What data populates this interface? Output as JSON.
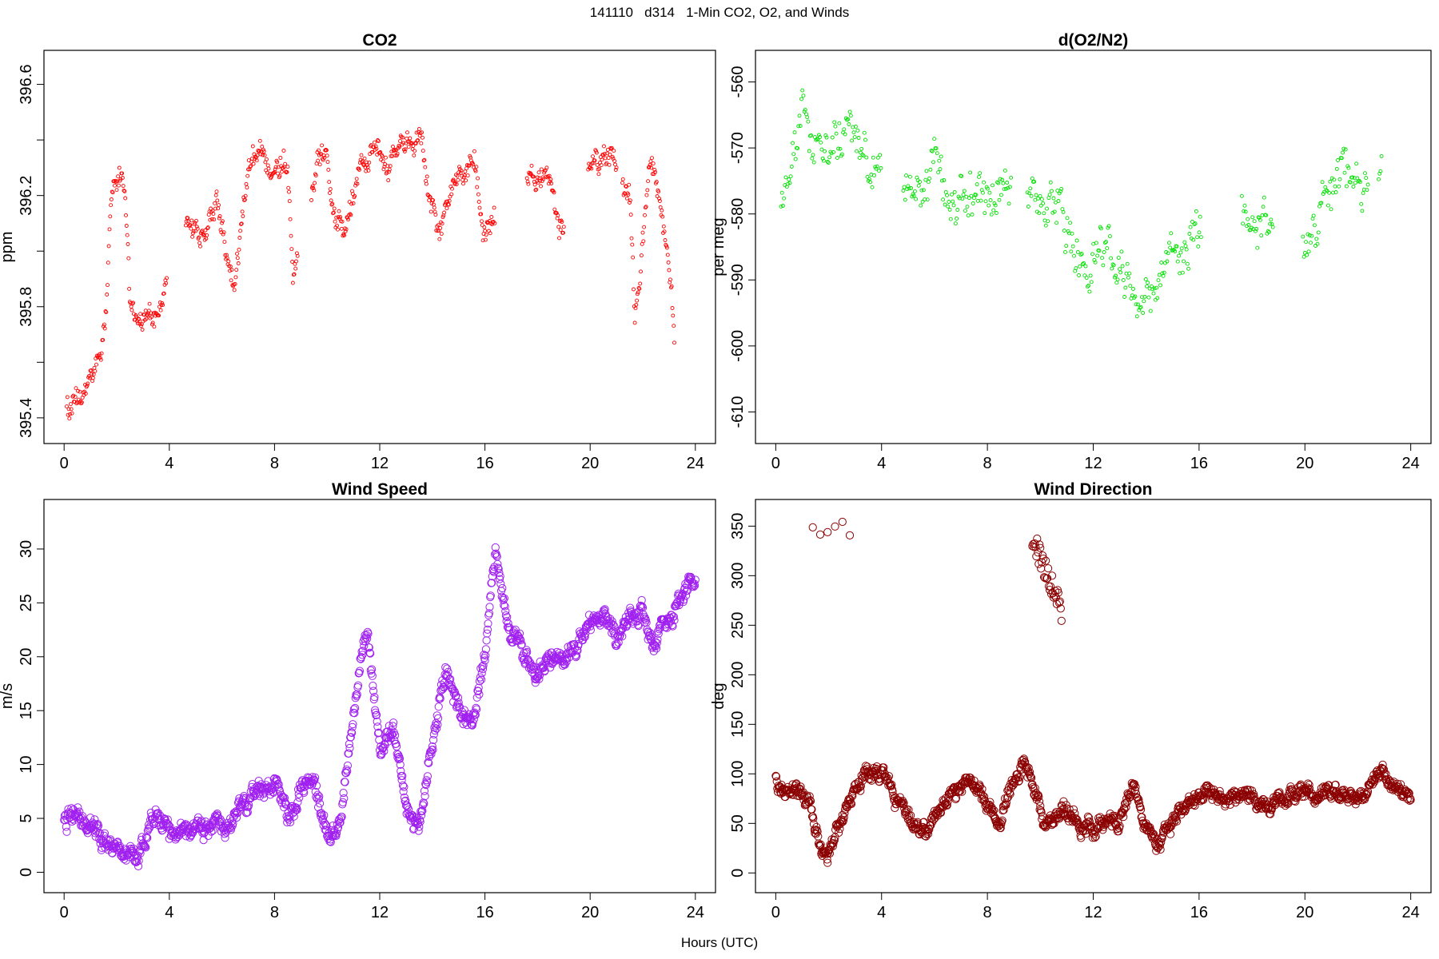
{
  "page": {
    "title": "141110   d314   1-Min CO2, O2, and Winds",
    "xlabel": "Hours (UTC)"
  },
  "chart_data": [
    {
      "type": "scatter",
      "title": "CO2",
      "xlabel": "",
      "ylabel": "ppm",
      "xlim": [
        0,
        24
      ],
      "ylim": [
        395.35,
        396.68
      ],
      "x_ticks": [
        0,
        4,
        8,
        12,
        16,
        20,
        24
      ],
      "y_ticks": [
        395.4,
        395.6,
        395.8,
        396.0,
        396.2,
        396.4,
        396.6
      ],
      "y_tick_labels": [
        "395.4",
        "",
        "395.8",
        "",
        "396.2",
        "",
        "396.6"
      ],
      "color": "#ff0000",
      "marker": "small-open-circle",
      "anchors": [
        [
          0.1,
          395.45
        ],
        [
          0.5,
          395.44
        ],
        [
          0.8,
          395.48
        ],
        [
          1.0,
          395.55
        ],
        [
          1.4,
          395.62
        ],
        [
          1.6,
          395.8
        ],
        [
          1.8,
          396.2
        ],
        [
          2.2,
          396.3
        ],
        [
          2.4,
          396.1
        ],
        [
          2.5,
          395.82
        ],
        [
          3.0,
          395.75
        ],
        [
          3.5,
          395.75
        ],
        [
          4.7,
          396.1
        ],
        [
          5.3,
          396.05
        ],
        [
          5.8,
          396.18
        ],
        [
          6.2,
          395.95
        ],
        [
          6.5,
          395.92
        ],
        [
          7.0,
          396.3
        ],
        [
          7.5,
          396.32
        ],
        [
          8.5,
          396.33
        ],
        [
          8.7,
          395.95
        ],
        [
          9.6,
          396.33
        ],
        [
          10.0,
          396.35
        ],
        [
          10.3,
          396.15
        ],
        [
          10.7,
          396.1
        ],
        [
          11.2,
          396.3
        ],
        [
          11.8,
          396.35
        ],
        [
          12.3,
          396.3
        ],
        [
          12.8,
          396.35
        ],
        [
          13.5,
          396.4
        ],
        [
          14.3,
          396.05
        ],
        [
          15.0,
          396.35
        ],
        [
          15.6,
          396.3
        ],
        [
          16.0,
          396.05
        ],
        [
          17.8,
          396.25
        ],
        [
          18.3,
          396.25
        ],
        [
          18.8,
          396.05
        ],
        [
          20.2,
          396.35
        ],
        [
          20.8,
          396.33
        ],
        [
          21.5,
          396.25
        ],
        [
          21.7,
          395.75
        ],
        [
          22.3,
          396.35
        ],
        [
          22.8,
          396.1
        ],
        [
          23.1,
          395.8
        ],
        [
          23.2,
          395.65
        ]
      ],
      "gaps": [
        [
          3.9,
          4.6
        ],
        [
          8.9,
          9.4
        ],
        [
          16.4,
          17.6
        ],
        [
          19.0,
          19.9
        ],
        [
          21.0,
          21.2
        ]
      ],
      "noise": 0.05,
      "step_minutes": 1.5
    },
    {
      "type": "scatter",
      "title": "d(O2/N2)",
      "xlabel": "",
      "ylabel": "per meg",
      "xlim": [
        0,
        24
      ],
      "ylim": [
        -613,
        -557
      ],
      "x_ticks": [
        0,
        4,
        8,
        12,
        16,
        20,
        24
      ],
      "y_ticks": [
        -560,
        -570,
        -580,
        -590,
        -600,
        -610
      ],
      "y_tick_labels": [
        "-560",
        "-570",
        "-580",
        "-590",
        "-600",
        "-610"
      ],
      "color": "#00e000",
      "marker": "small-open-circle",
      "anchors": [
        [
          0.2,
          -580
        ],
        [
          1.0,
          -568
        ],
        [
          2.0,
          -572
        ],
        [
          3.0,
          -570
        ],
        [
          3.8,
          -573
        ],
        [
          4.9,
          -575
        ],
        [
          6.0,
          -576
        ],
        [
          7.0,
          -578
        ],
        [
          8.0,
          -578
        ],
        [
          8.8,
          -576
        ],
        [
          9.7,
          -578
        ],
        [
          10.5,
          -577
        ],
        [
          11.0,
          -582
        ],
        [
          11.8,
          -590
        ],
        [
          12.5,
          -584
        ],
        [
          13.0,
          -590
        ],
        [
          13.8,
          -592
        ],
        [
          14.5,
          -590
        ],
        [
          15.2,
          -588
        ],
        [
          15.8,
          -582
        ],
        [
          17.8,
          -580
        ],
        [
          18.5,
          -580
        ],
        [
          20.0,
          -582
        ],
        [
          20.8,
          -578
        ],
        [
          21.5,
          -573
        ],
        [
          22.2,
          -576
        ],
        [
          22.9,
          -572
        ]
      ],
      "gaps": [
        [
          3.99,
          4.8
        ],
        [
          8.9,
          9.5
        ],
        [
          16.1,
          17.6
        ],
        [
          18.8,
          19.9
        ],
        [
          22.4,
          22.75
        ]
      ],
      "noise": 4.2,
      "step_minutes": 2.2
    },
    {
      "type": "scatter",
      "title": "Wind Speed",
      "xlabel": "",
      "ylabel": "m/s",
      "xlim": [
        0,
        24
      ],
      "ylim": [
        -0.8,
        33.5
      ],
      "x_ticks": [
        0,
        4,
        8,
        12,
        16,
        20,
        24
      ],
      "y_ticks": [
        0,
        5,
        10,
        15,
        20,
        25,
        30
      ],
      "y_tick_labels": [
        "0",
        "5",
        "10",
        "15",
        "20",
        "25",
        "30"
      ],
      "color": "#a020f0",
      "marker": "open-circle",
      "anchors": [
        [
          0,
          5
        ],
        [
          1.0,
          4.5
        ],
        [
          2.0,
          2.5
        ],
        [
          2.7,
          1.0
        ],
        [
          3.5,
          5.5
        ],
        [
          4.3,
          3.5
        ],
        [
          5.0,
          4.0
        ],
        [
          6.0,
          4.5
        ],
        [
          7.0,
          6.0
        ],
        [
          8.0,
          8.0
        ],
        [
          8.5,
          5.0
        ],
        [
          9.0,
          7.5
        ],
        [
          9.5,
          8.5
        ],
        [
          10.0,
          3.5
        ],
        [
          10.5,
          4.0
        ],
        [
          11.0,
          15.0
        ],
        [
          11.5,
          22.0
        ],
        [
          12.0,
          11.0
        ],
        [
          12.5,
          14.0
        ],
        [
          13.0,
          6.0
        ],
        [
          13.5,
          4.0
        ],
        [
          14.0,
          12.0
        ],
        [
          14.5,
          18.0
        ],
        [
          15.0,
          15.0
        ],
        [
          15.5,
          13.0
        ],
        [
          16.0,
          20.0
        ],
        [
          16.4,
          30.0
        ],
        [
          16.8,
          24.0
        ],
        [
          17.5,
          20.0
        ],
        [
          18.0,
          18.0
        ],
        [
          18.5,
          19.5
        ],
        [
          19.0,
          20.0
        ],
        [
          19.5,
          21.0
        ],
        [
          20.5,
          24.0
        ],
        [
          21.0,
          21.5
        ],
        [
          22.0,
          24.5
        ],
        [
          22.5,
          21.5
        ],
        [
          23.0,
          23.0
        ],
        [
          23.5,
          26.0
        ],
        [
          24.0,
          27.0
        ]
      ],
      "gaps": [],
      "noise": 1.0,
      "step_minutes": 1.2
    },
    {
      "type": "scatter",
      "title": "Wind Direction",
      "xlabel": "",
      "ylabel": "deg",
      "xlim": [
        0,
        24
      ],
      "ylim": [
        -8,
        365
      ],
      "x_ticks": [
        0,
        4,
        8,
        12,
        16,
        20,
        24
      ],
      "y_ticks": [
        0,
        50,
        100,
        150,
        200,
        250,
        300,
        350
      ],
      "y_tick_labels": [
        "0",
        "50",
        "100",
        "150",
        "200",
        "250",
        "300",
        "350"
      ],
      "color": "#8b0000",
      "marker": "open-circle",
      "anchors": [
        [
          0,
          95
        ],
        [
          0.7,
          80
        ],
        [
          1.3,
          70
        ],
        [
          1.6,
          30
        ],
        [
          2.0,
          20
        ],
        [
          2.4,
          45
        ],
        [
          3.0,
          80
        ],
        [
          3.5,
          100
        ],
        [
          4.0,
          100
        ],
        [
          4.6,
          75
        ],
        [
          5.0,
          55
        ],
        [
          5.5,
          40
        ],
        [
          6.0,
          55
        ],
        [
          6.5,
          70
        ],
        [
          7.0,
          90
        ],
        [
          7.5,
          90
        ],
        [
          8.0,
          70
        ],
        [
          8.5,
          55
        ],
        [
          9.0,
          100
        ],
        [
          9.5,
          108
        ],
        [
          10.0,
          60
        ],
        [
          10.5,
          50
        ],
        [
          11.0,
          65
        ],
        [
          11.5,
          45
        ],
        [
          12.0,
          40
        ],
        [
          12.5,
          55
        ],
        [
          13.0,
          45
        ],
        [
          13.5,
          90
        ],
        [
          14.0,
          45
        ],
        [
          14.5,
          30
        ],
        [
          15.0,
          55
        ],
        [
          15.5,
          70
        ],
        [
          16.0,
          80
        ],
        [
          17.0,
          80
        ],
        [
          18.0,
          75
        ],
        [
          18.5,
          70
        ],
        [
          19.0,
          75
        ],
        [
          20.0,
          80
        ],
        [
          20.5,
          75
        ],
        [
          21.0,
          75
        ],
        [
          22.0,
          75
        ],
        [
          22.8,
          100
        ],
        [
          23.3,
          85
        ],
        [
          24.0,
          80
        ]
      ],
      "gaps": [],
      "extra_clusters": [
        {
          "x0": 1.4,
          "x1": 2.8,
          "y": 348,
          "count": 6,
          "spread": 10
        },
        {
          "x0": 9.7,
          "x1": 10.8,
          "y_start": 340,
          "y_end": 265,
          "count": 38,
          "spread": 12
        }
      ],
      "noise": 9.0,
      "step_minutes": 1.2
    }
  ]
}
